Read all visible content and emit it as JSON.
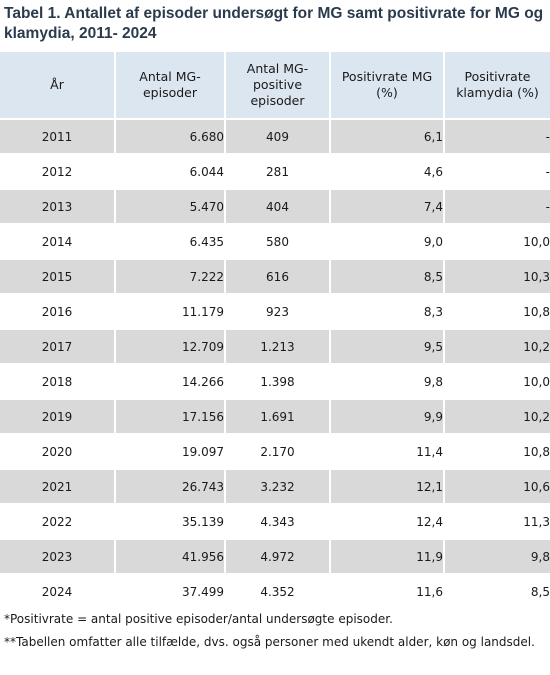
{
  "title": "Tabel 1. Antallet af episoder undersøgt for MG samt positivrate for MG og klamydia, 2011- 2024",
  "headers": [
    "År",
    "Antal MG-episoder",
    "Antal MG-positive episoder",
    "Positivrate MG (%)",
    "Positivrate klamydia (%)"
  ],
  "rows": [
    {
      "year": "2011",
      "episodes": "6.680",
      "positive": "409",
      "mg_rate": "6,1",
      "klamydia_rate": "-"
    },
    {
      "year": "2012",
      "episodes": "6.044",
      "positive": "281",
      "mg_rate": "4,6",
      "klamydia_rate": "-"
    },
    {
      "year": "2013",
      "episodes": "5.470",
      "positive": "404",
      "mg_rate": "7,4",
      "klamydia_rate": "-"
    },
    {
      "year": "2014",
      "episodes": "6.435",
      "positive": "580",
      "mg_rate": "9,0",
      "klamydia_rate": "10,0"
    },
    {
      "year": "2015",
      "episodes": "7.222",
      "positive": "616",
      "mg_rate": "8,5",
      "klamydia_rate": "10,3"
    },
    {
      "year": "2016",
      "episodes": "11.179",
      "positive": "923",
      "mg_rate": "8,3",
      "klamydia_rate": "10,8"
    },
    {
      "year": "2017",
      "episodes": "12.709",
      "positive": "1.213",
      "mg_rate": "9,5",
      "klamydia_rate": "10,2"
    },
    {
      "year": "2018",
      "episodes": "14.266",
      "positive": "1.398",
      "mg_rate": "9,8",
      "klamydia_rate": "10,0"
    },
    {
      "year": "2019",
      "episodes": "17.156",
      "positive": "1.691",
      "mg_rate": "9,9",
      "klamydia_rate": "10,2"
    },
    {
      "year": "2020",
      "episodes": "19.097",
      "positive": "2.170",
      "mg_rate": "11,4",
      "klamydia_rate": "10,8"
    },
    {
      "year": "2021",
      "episodes": "26.743",
      "positive": "3.232",
      "mg_rate": "12,1",
      "klamydia_rate": "10,6"
    },
    {
      "year": "2022",
      "episodes": "35.139",
      "positive": "4.343",
      "mg_rate": "12,4",
      "klamydia_rate": "11,3"
    },
    {
      "year": "2023",
      "episodes": "41.956",
      "positive": "4.972",
      "mg_rate": "11,9",
      "klamydia_rate": "9,8"
    },
    {
      "year": "2024",
      "episodes": "37.499",
      "positive": "4.352",
      "mg_rate": "11,6",
      "klamydia_rate": "8,5"
    }
  ],
  "notes": [
    "*Positivrate = antal positive episoder/antal undersøgte episoder.",
    "**Tabellen omfatter alle tilfælde, dvs. også personer med ukendt alder, køn og landsdel."
  ],
  "colors": {
    "header_bg": "#dce6f1",
    "stripe_bg": "#d9d9d9",
    "title_color": "#2b3b4e"
  }
}
